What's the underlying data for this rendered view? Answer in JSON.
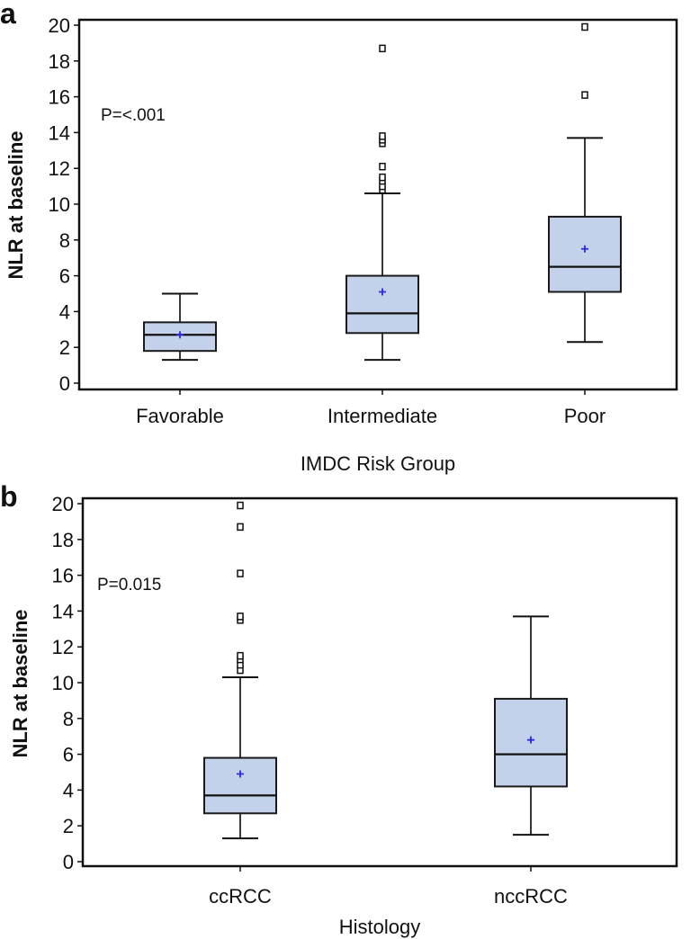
{
  "chart_data": [
    {
      "type": "box",
      "panel_label": "a",
      "annotation": "P=<.001",
      "xlabel": "IMDC Risk Group",
      "ylabel": "NLR at baseline",
      "ylim": [
        0,
        20
      ],
      "yticks": [
        0,
        2,
        4,
        6,
        8,
        10,
        12,
        14,
        16,
        18,
        20
      ],
      "grid": false,
      "categories": [
        "Favorable",
        "Intermediate",
        "Poor"
      ],
      "boxes": [
        {
          "min": 1.3,
          "q1": 1.8,
          "median": 2.7,
          "q3": 3.4,
          "max": 5.0,
          "mean": 2.7,
          "outliers": []
        },
        {
          "min": 1.3,
          "q1": 2.8,
          "median": 3.9,
          "q3": 6.0,
          "max": 10.6,
          "mean": 5.1,
          "outliers": [
            10.8,
            11.0,
            11.3,
            11.5,
            12.1,
            13.4,
            13.6,
            13.8,
            18.7
          ]
        },
        {
          "min": 2.3,
          "q1": 5.1,
          "median": 6.5,
          "q3": 9.3,
          "max": 13.7,
          "mean": 7.5,
          "outliers": [
            16.1,
            19.9
          ]
        }
      ]
    },
    {
      "type": "box",
      "panel_label": "b",
      "annotation": "P=0.015",
      "xlabel": "Histology",
      "ylabel": "NLR at baseline",
      "ylim": [
        0,
        20
      ],
      "yticks": [
        0,
        2,
        4,
        6,
        8,
        10,
        12,
        14,
        16,
        18,
        20
      ],
      "grid": false,
      "categories": [
        "ccRCC",
        "nccRCC"
      ],
      "boxes": [
        {
          "min": 1.3,
          "q1": 2.7,
          "median": 3.7,
          "q3": 5.8,
          "max": 10.3,
          "mean": 4.9,
          "outliers": [
            10.7,
            11.0,
            11.3,
            11.5,
            13.5,
            13.7,
            16.1,
            18.7,
            19.9
          ]
        },
        {
          "min": 1.5,
          "q1": 4.2,
          "median": 6.0,
          "q3": 9.1,
          "max": 13.7,
          "mean": 6.8,
          "outliers": []
        }
      ]
    }
  ],
  "colors": {
    "box_fill": "#c3d1ea",
    "box_stroke": "#1a1a1a",
    "mean_marker": "#2a2ae0",
    "axis": "#111111"
  }
}
